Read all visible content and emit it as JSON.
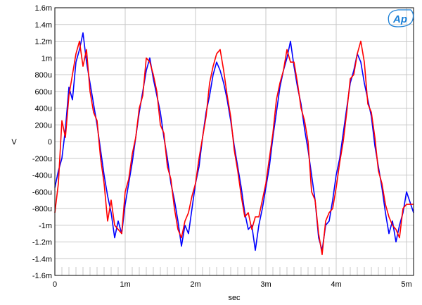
{
  "chart_data": {
    "type": "line",
    "title": "",
    "xlabel": "sec",
    "ylabel": "V",
    "xlim": [
      0,
      0.0051
    ],
    "ylim": [
      -1.6,
      1.6
    ],
    "grid": true,
    "legend": "none",
    "logo": "Ap",
    "x_ticks": [
      {
        "value": 0,
        "label": "0"
      },
      {
        "value": 0.001,
        "label": "1m"
      },
      {
        "value": 0.002,
        "label": "2m"
      },
      {
        "value": 0.003,
        "label": "3m"
      },
      {
        "value": 0.004,
        "label": "4m"
      },
      {
        "value": 0.005,
        "label": "5m"
      }
    ],
    "y_ticks": [
      {
        "value": 1.6,
        "label": "1.6m"
      },
      {
        "value": 1.4,
        "label": "1.4m"
      },
      {
        "value": 1.2,
        "label": "1.2m"
      },
      {
        "value": 1.0,
        "label": "1m"
      },
      {
        "value": 0.8,
        "label": "800u"
      },
      {
        "value": 0.6,
        "label": "600u"
      },
      {
        "value": 0.4,
        "label": "400u"
      },
      {
        "value": 0.2,
        "label": "200u"
      },
      {
        "value": 0,
        "label": "0"
      },
      {
        "value": -0.2,
        "label": "-200u"
      },
      {
        "value": -0.4,
        "label": "-400u"
      },
      {
        "value": -0.6,
        "label": "-600u"
      },
      {
        "value": -0.8,
        "label": "-800u"
      },
      {
        "value": -1.0,
        "label": "-1m"
      },
      {
        "value": -1.2,
        "label": "-1.2m"
      },
      {
        "value": -1.4,
        "label": "-1.4m"
      },
      {
        "value": -1.6,
        "label": "-1.6m"
      }
    ],
    "colors": {
      "blue": "#0000ff",
      "red": "#ff0000",
      "grid": "#c8c8c8",
      "logo": "#1a7fd6"
    },
    "series": [
      {
        "color": "#0000ff",
        "x": [
          0,
          5e-05,
          0.0001,
          0.00015,
          0.0002,
          0.00025,
          0.0003,
          0.00035,
          0.0004,
          0.00045,
          0.0005,
          0.00055,
          0.0006,
          0.00065,
          0.0007,
          0.00075,
          0.0008,
          0.00085,
          0.0009,
          0.00095,
          0.001,
          0.00105,
          0.0011,
          0.00115,
          0.0012,
          0.00125,
          0.0013,
          0.00135,
          0.0014,
          0.00145,
          0.0015,
          0.00155,
          0.0016,
          0.00165,
          0.0017,
          0.00175,
          0.0018,
          0.00185,
          0.0019,
          0.00195,
          0.002,
          0.00205,
          0.0021,
          0.00215,
          0.0022,
          0.00225,
          0.0023,
          0.00235,
          0.0024,
          0.00245,
          0.0025,
          0.00255,
          0.0026,
          0.00265,
          0.0027,
          0.00275,
          0.0028,
          0.00285,
          0.0029,
          0.00295,
          0.003,
          0.00305,
          0.0031,
          0.00315,
          0.0032,
          0.00325,
          0.0033,
          0.00335,
          0.0034,
          0.00345,
          0.0035,
          0.00355,
          0.0036,
          0.00365,
          0.0037,
          0.00375,
          0.0038,
          0.00385,
          0.0039,
          0.00395,
          0.004,
          0.00405,
          0.0041,
          0.00415,
          0.0042,
          0.00425,
          0.0043,
          0.00435,
          0.0044,
          0.00445,
          0.0045,
          0.00455,
          0.0046,
          0.00465,
          0.0047,
          0.00475,
          0.0048,
          0.00485,
          0.0049,
          0.00495,
          0.005,
          0.0051
        ],
        "y": [
          -0.55,
          -0.35,
          -0.2,
          0.15,
          0.65,
          0.5,
          0.95,
          1.1,
          1.3,
          0.95,
          0.7,
          0.45,
          0.2,
          -0.1,
          -0.4,
          -0.65,
          -0.85,
          -1.15,
          -0.95,
          -1.1,
          -0.75,
          -0.5,
          -0.25,
          0.05,
          0.35,
          0.6,
          0.85,
          1.0,
          0.75,
          0.55,
          0.35,
          0.05,
          -0.2,
          -0.5,
          -0.7,
          -0.95,
          -1.25,
          -1.0,
          -1.1,
          -0.8,
          -0.5,
          -0.3,
          0.05,
          0.35,
          0.55,
          0.8,
          0.95,
          0.85,
          0.7,
          0.5,
          0.25,
          -0.05,
          -0.3,
          -0.55,
          -0.85,
          -1.05,
          -1.0,
          -1.3,
          -1.0,
          -0.8,
          -0.55,
          -0.3,
          0.05,
          0.35,
          0.65,
          0.85,
          1.0,
          1.2,
          0.9,
          0.65,
          0.45,
          0.15,
          -0.1,
          -0.4,
          -0.7,
          -1.15,
          -1.3,
          -1.0,
          -0.95,
          -0.7,
          -0.4,
          -0.2,
          0.1,
          0.4,
          0.7,
          0.85,
          1.05,
          0.95,
          0.7,
          0.5,
          0.3,
          -0.05,
          -0.3,
          -0.55,
          -0.85,
          -1.1,
          -0.95,
          -1.2,
          -1.0,
          -0.85,
          -0.6,
          -0.85
        ]
      },
      {
        "color": "#ff0000",
        "x": [
          0,
          5e-05,
          0.0001,
          0.00015,
          0.0002,
          0.00025,
          0.0003,
          0.00035,
          0.0004,
          0.00045,
          0.0005,
          0.00055,
          0.0006,
          0.00065,
          0.0007,
          0.00075,
          0.0008,
          0.00085,
          0.0009,
          0.00095,
          0.001,
          0.00105,
          0.0011,
          0.00115,
          0.0012,
          0.00125,
          0.0013,
          0.00135,
          0.0014,
          0.00145,
          0.0015,
          0.00155,
          0.0016,
          0.00165,
          0.0017,
          0.00175,
          0.0018,
          0.00185,
          0.0019,
          0.00195,
          0.002,
          0.00205,
          0.0021,
          0.00215,
          0.0022,
          0.00225,
          0.0023,
          0.00235,
          0.0024,
          0.00245,
          0.0025,
          0.00255,
          0.0026,
          0.00265,
          0.0027,
          0.00275,
          0.0028,
          0.00285,
          0.0029,
          0.00295,
          0.003,
          0.00305,
          0.0031,
          0.00315,
          0.0032,
          0.00325,
          0.0033,
          0.00335,
          0.0034,
          0.00345,
          0.0035,
          0.00355,
          0.0036,
          0.00365,
          0.0037,
          0.00375,
          0.0038,
          0.00385,
          0.0039,
          0.00395,
          0.004,
          0.00405,
          0.0041,
          0.00415,
          0.0042,
          0.00425,
          0.0043,
          0.00435,
          0.0044,
          0.00445,
          0.0045,
          0.00455,
          0.0046,
          0.00465,
          0.0047,
          0.00475,
          0.0048,
          0.00485,
          0.0049,
          0.00495,
          0.005,
          0.0051
        ],
        "y": [
          -0.85,
          -0.5,
          0.25,
          0.05,
          0.55,
          0.8,
          1.05,
          1.2,
          0.9,
          1.1,
          0.6,
          0.35,
          0.25,
          -0.2,
          -0.5,
          -0.95,
          -0.7,
          -1.0,
          -1.05,
          -1.1,
          -0.6,
          -0.45,
          -0.15,
          0.05,
          0.4,
          0.55,
          1.0,
          0.95,
          0.8,
          0.6,
          0.2,
          0.1,
          -0.3,
          -0.45,
          -0.8,
          -1.05,
          -1.15,
          -0.95,
          -0.85,
          -0.65,
          -0.5,
          -0.2,
          0.05,
          0.3,
          0.7,
          0.9,
          1.05,
          1.1,
          0.85,
          0.55,
          0.3,
          -0.1,
          -0.35,
          -0.65,
          -0.9,
          -0.85,
          -1.05,
          -0.9,
          -0.9,
          -0.7,
          -0.5,
          -0.2,
          0.1,
          0.5,
          0.7,
          0.85,
          1.1,
          0.95,
          0.95,
          0.7,
          0.4,
          0.25,
          0.0,
          -0.6,
          -0.7,
          -1.1,
          -1.35,
          -0.95,
          -0.85,
          -0.8,
          -0.55,
          -0.25,
          0.0,
          0.35,
          0.75,
          0.8,
          1.05,
          1.2,
          0.95,
          0.45,
          0.35,
          0.05,
          -0.35,
          -0.5,
          -0.75,
          -0.9,
          -1.0,
          -1.05,
          -1.15,
          -0.8,
          -0.75,
          -0.75
        ]
      }
    ]
  }
}
